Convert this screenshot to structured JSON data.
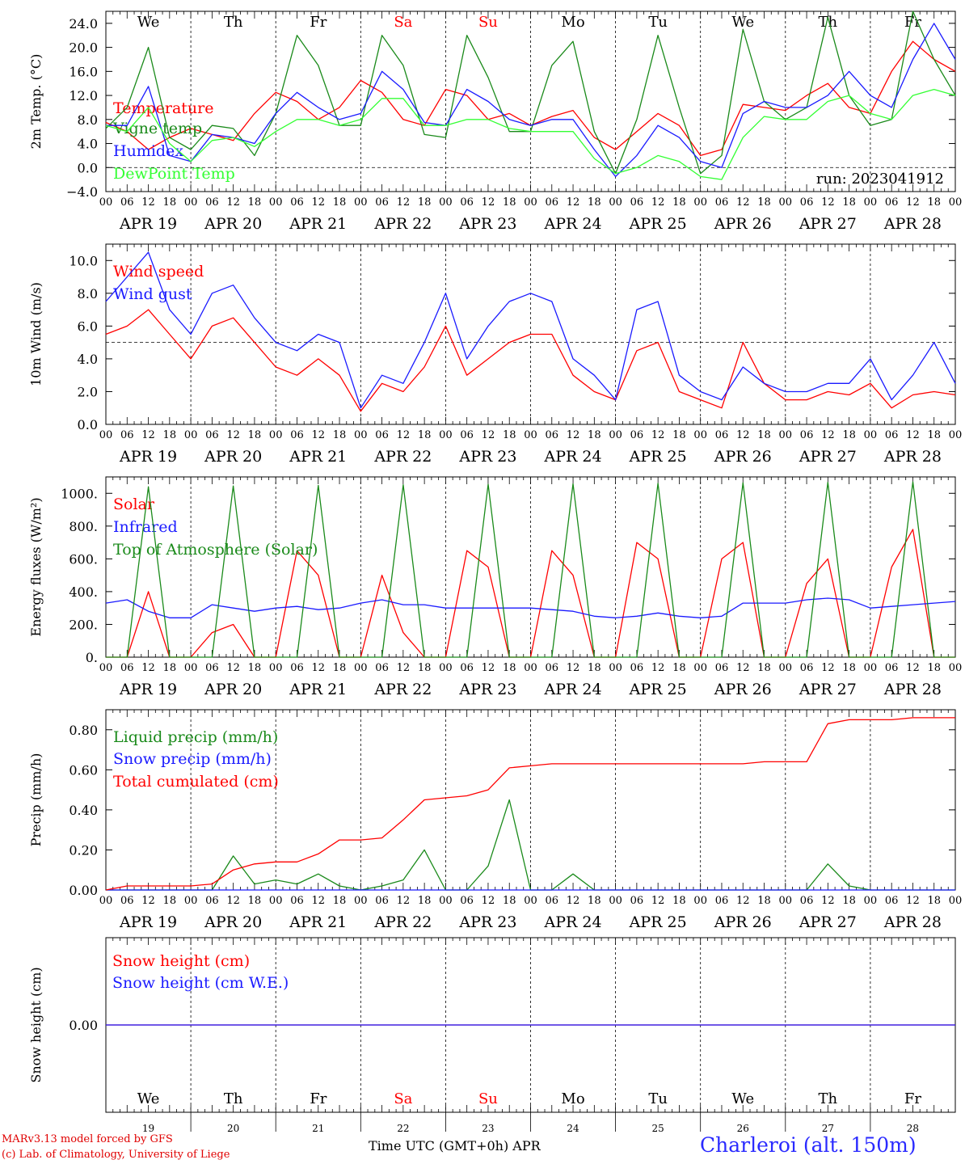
{
  "chart_data": [
    {
      "type": "line",
      "ylabel": "2m Temp. (°C)",
      "ylim": [
        -4,
        26
      ],
      "yticks": [
        "−4.0",
        "0.0",
        "4.0",
        "8.0",
        "12.0",
        "16.0",
        "20.0",
        "24.0"
      ],
      "reference_line": 0,
      "run_label": "run: 2023041912",
      "day_labels": [
        "We",
        "Th",
        "Fr",
        "Sa",
        "Su",
        "Mo",
        "Tu",
        "We",
        "Th",
        "Fr"
      ],
      "weekend_indices": [
        3,
        4
      ],
      "date_labels": [
        "APR 19",
        "APR 20",
        "APR 21",
        "APR 22",
        "APR 23",
        "APR 24",
        "APR 25",
        "APR 26",
        "APR 27",
        "APR 28"
      ],
      "x_hours": [
        0,
        6,
        12,
        18,
        24,
        30,
        36,
        42,
        48,
        54,
        60,
        66,
        72,
        78,
        84,
        90,
        96,
        102,
        108,
        114,
        120,
        126,
        132,
        138,
        144,
        150,
        156,
        162,
        168,
        174,
        180,
        186,
        192,
        198,
        204,
        210,
        216,
        222,
        228,
        234,
        240
      ],
      "series": [
        {
          "name": "Temperature",
          "color": "#ff0000",
          "values": [
            7.5,
            6,
            3,
            5,
            6.5,
            5.5,
            4.5,
            9,
            12.5,
            11,
            8,
            10,
            14.5,
            12.5,
            8,
            7,
            13,
            12,
            8,
            9,
            7,
            8.5,
            9.5,
            5,
            3,
            6,
            9,
            7,
            2,
            3,
            10.5,
            10,
            9.5,
            12,
            14,
            10,
            9,
            16,
            21,
            18,
            16
          ]
        },
        {
          "name": "Vigne temp",
          "color": "#1a8a1a",
          "values": [
            6.5,
            10,
            20,
            5,
            3,
            7,
            6.5,
            2,
            9,
            22,
            17,
            7,
            7,
            22,
            17,
            5.5,
            5,
            22,
            15,
            6,
            6,
            17,
            21,
            6,
            -1,
            8,
            22,
            10,
            -1,
            2,
            23,
            11,
            8,
            10,
            25,
            12,
            7,
            8,
            26,
            18,
            12
          ]
        },
        {
          "name": "Humidex",
          "color": "#1a1aff",
          "values": [
            7,
            7,
            13.5,
            2,
            1,
            5.5,
            5,
            4,
            9,
            12.5,
            10,
            8,
            9,
            16,
            13,
            7.5,
            7,
            13,
            11,
            8,
            7,
            8,
            8,
            3,
            -1.5,
            2,
            7,
            5,
            1,
            0,
            9,
            11,
            10,
            10,
            12,
            16,
            12,
            10,
            18,
            24,
            18
          ]
        },
        {
          "name": "DewPoint Temp",
          "color": "#33ff33",
          "values": [
            7,
            6,
            10,
            4,
            1,
            4.5,
            5,
            3.5,
            6,
            8,
            8,
            7,
            8,
            11.5,
            11.5,
            7,
            7,
            8,
            8,
            6.5,
            6,
            6,
            6,
            1.5,
            -1,
            0,
            2,
            1,
            -1.5,
            -2,
            5,
            8.5,
            8,
            8,
            11,
            12,
            9,
            8,
            12,
            13,
            12
          ]
        }
      ]
    },
    {
      "type": "line",
      "ylabel": "10m Wind (m/s)",
      "ylim": [
        0,
        11
      ],
      "yticks": [
        "0.0",
        "2.0",
        "4.0",
        "6.0",
        "8.0",
        "10.0"
      ],
      "reference_line": 5,
      "date_labels": [
        "APR 19",
        "APR 20",
        "APR 21",
        "APR 22",
        "APR 23",
        "APR 24",
        "APR 25",
        "APR 26",
        "APR 27",
        "APR 28"
      ],
      "x_hours": [
        0,
        6,
        12,
        18,
        24,
        30,
        36,
        42,
        48,
        54,
        60,
        66,
        72,
        78,
        84,
        90,
        96,
        102,
        108,
        114,
        120,
        126,
        132,
        138,
        144,
        150,
        156,
        162,
        168,
        174,
        180,
        186,
        192,
        198,
        204,
        210,
        216,
        222,
        228,
        234,
        240
      ],
      "series": [
        {
          "name": "Wind speed",
          "color": "#ff0000",
          "values": [
            5.5,
            6,
            7,
            5.5,
            4,
            6,
            6.5,
            5,
            3.5,
            3,
            4,
            3,
            0.8,
            2.5,
            2,
            3.5,
            6,
            3,
            4,
            5,
            5.5,
            5.5,
            3,
            2,
            1.5,
            4.5,
            5,
            2,
            1.5,
            1,
            5,
            2.5,
            1.5,
            1.5,
            2,
            1.8,
            2.5,
            1,
            1.8,
            2,
            1.8
          ]
        },
        {
          "name": "Wind gust",
          "color": "#1a1aff",
          "values": [
            7.5,
            9,
            10.5,
            7,
            5.5,
            8,
            8.5,
            6.5,
            5,
            4.5,
            5.5,
            5,
            1,
            3,
            2.5,
            5,
            8,
            4,
            6,
            7.5,
            8,
            7.5,
            4,
            3,
            1.5,
            7,
            7.5,
            3,
            2,
            1.5,
            3.5,
            2.5,
            2,
            2,
            2.5,
            2.5,
            4,
            1.5,
            3,
            5,
            2.5
          ]
        }
      ]
    },
    {
      "type": "line",
      "ylabel": "Energy fluxes (W/m²)",
      "ylim": [
        0,
        1100
      ],
      "yticks": [
        "0.",
        "200.",
        "400.",
        "600.",
        "800.",
        "1000."
      ],
      "date_labels": [
        "APR 19",
        "APR 20",
        "APR 21",
        "APR 22",
        "APR 23",
        "APR 24",
        "APR 25",
        "APR 26",
        "APR 27",
        "APR 28"
      ],
      "x_hours": [
        0,
        6,
        12,
        18,
        24,
        30,
        36,
        42,
        48,
        54,
        60,
        66,
        72,
        78,
        84,
        90,
        96,
        102,
        108,
        114,
        120,
        126,
        132,
        138,
        144,
        150,
        156,
        162,
        168,
        174,
        180,
        186,
        192,
        198,
        204,
        210,
        216,
        222,
        228,
        234,
        240
      ],
      "series": [
        {
          "name": "Solar",
          "color": "#ff0000",
          "values": [
            0,
            0,
            400,
            0,
            0,
            150,
            200,
            0,
            0,
            650,
            500,
            0,
            0,
            500,
            150,
            0,
            0,
            650,
            550,
            0,
            0,
            650,
            500,
            0,
            0,
            700,
            600,
            0,
            0,
            600,
            700,
            0,
            0,
            450,
            600,
            0,
            0,
            550,
            780,
            0,
            0
          ]
        },
        {
          "name": "Infrared",
          "color": "#1a1aff",
          "values": [
            330,
            350,
            280,
            240,
            240,
            320,
            300,
            280,
            300,
            310,
            290,
            300,
            330,
            350,
            320,
            320,
            300,
            300,
            300,
            300,
            300,
            290,
            280,
            250,
            240,
            250,
            270,
            250,
            240,
            250,
            330,
            330,
            330,
            350,
            360,
            350,
            300,
            310,
            320,
            330,
            340
          ]
        },
        {
          "name": "Top of Atmosphere (Solar)",
          "color": "#1a8a1a",
          "values": [
            0,
            0,
            1040,
            0,
            0,
            0,
            1045,
            0,
            0,
            0,
            1048,
            0,
            0,
            0,
            1052,
            0,
            0,
            0,
            1055,
            0,
            0,
            0,
            1058,
            0,
            0,
            0,
            1061,
            0,
            0,
            0,
            1064,
            0,
            0,
            0,
            1067,
            0,
            0,
            0,
            1070,
            0,
            0
          ]
        }
      ]
    },
    {
      "type": "line",
      "ylabel": "Precip (mm/h)",
      "ylim": [
        0,
        0.9
      ],
      "yticks": [
        "0.00",
        "0.20",
        "0.40",
        "0.60",
        "0.80"
      ],
      "date_labels": [
        "APR 19",
        "APR 20",
        "APR 21",
        "APR 22",
        "APR 23",
        "APR 24",
        "APR 25",
        "APR 26",
        "APR 27",
        "APR 28"
      ],
      "x_hours": [
        0,
        6,
        12,
        18,
        24,
        30,
        36,
        42,
        48,
        54,
        60,
        66,
        72,
        78,
        84,
        90,
        96,
        102,
        108,
        114,
        120,
        126,
        132,
        138,
        144,
        150,
        156,
        162,
        168,
        174,
        180,
        186,
        192,
        198,
        204,
        210,
        216,
        222,
        228,
        234,
        240
      ],
      "series": [
        {
          "name": "Liquid precip (mm/h)",
          "color": "#1a8a1a",
          "values": [
            0,
            0,
            0,
            0,
            0,
            0,
            0.17,
            0.03,
            0.05,
            0.03,
            0.08,
            0.02,
            0,
            0.02,
            0.05,
            0.2,
            0,
            0,
            0.12,
            0.45,
            0,
            0,
            0.08,
            0,
            0,
            0,
            0,
            0,
            0,
            0,
            0,
            0,
            0,
            0,
            0.13,
            0.02,
            0,
            0,
            0,
            0,
            0
          ]
        },
        {
          "name": "Snow precip (mm/h)",
          "color": "#1a1aff",
          "values": [
            0,
            0,
            0,
            0,
            0,
            0,
            0,
            0,
            0,
            0,
            0,
            0,
            0,
            0,
            0,
            0,
            0,
            0,
            0,
            0,
            0,
            0,
            0,
            0,
            0,
            0,
            0,
            0,
            0,
            0,
            0,
            0,
            0,
            0,
            0,
            0,
            0,
            0,
            0,
            0,
            0
          ]
        },
        {
          "name": "Total cumulated (cm)",
          "color": "#ff0000",
          "values": [
            0,
            0.02,
            0.02,
            0.02,
            0.02,
            0.03,
            0.1,
            0.13,
            0.14,
            0.14,
            0.18,
            0.25,
            0.25,
            0.26,
            0.35,
            0.45,
            0.46,
            0.47,
            0.5,
            0.61,
            0.62,
            0.63,
            0.63,
            0.63,
            0.63,
            0.63,
            0.63,
            0.63,
            0.63,
            0.63,
            0.63,
            0.64,
            0.64,
            0.64,
            0.83,
            0.85,
            0.85,
            0.85,
            0.86,
            0.86,
            0.86
          ]
        }
      ]
    },
    {
      "type": "line",
      "ylabel": "Snow height (cm)",
      "ylim": [
        -1,
        1
      ],
      "yticks": [
        "0.00"
      ],
      "day_labels": [
        "We",
        "Th",
        "Fr",
        "Sa",
        "Su",
        "Mo",
        "Tu",
        "We",
        "Th",
        "Fr"
      ],
      "weekend_indices": [
        3,
        4
      ],
      "day_numbers": [
        "19",
        "20",
        "21",
        "22",
        "23",
        "24",
        "25",
        "26",
        "27",
        "28"
      ],
      "series": [
        {
          "name": "Snow height (cm)",
          "color": "#ff0000",
          "values": [
            0,
            0
          ]
        },
        {
          "name": "Snow height (cm W.E.)",
          "color": "#1a1aff",
          "values": [
            0,
            0
          ]
        }
      ]
    }
  ],
  "hour_ticks": [
    "00",
    "06",
    "12",
    "18"
  ],
  "final_hour_label": "00",
  "footer": {
    "credit_line1": "MARv3.13 model forced by GFS",
    "credit_line2": "(c) Lab. of Climatology, University of Liege",
    "x_axis_title": "Time UTC (GMT+0h) APR",
    "station": "Charleroi (alt. 150m)"
  },
  "colors": {
    "weekend": "#ff0000",
    "axis": "#000000",
    "grid": "#000000"
  }
}
